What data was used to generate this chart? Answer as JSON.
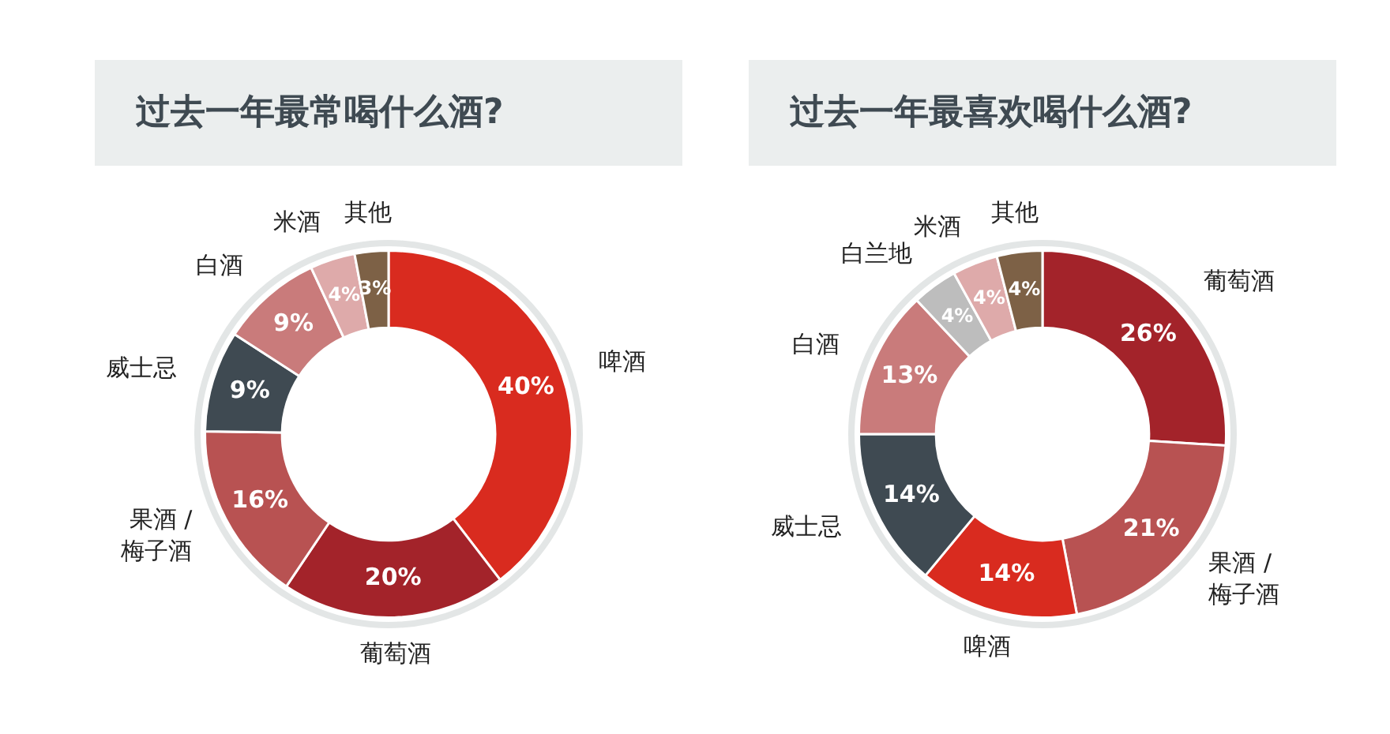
{
  "chart_data": [
    {
      "type": "donut",
      "title": "过去一年最常喝什么酒?",
      "categories": [
        "啤酒",
        "葡萄酒",
        "果酒 / 梅子酒",
        "威士忌",
        "白酒",
        "米酒",
        "其他"
      ],
      "values": [
        40,
        20,
        16,
        9,
        9,
        4,
        3
      ],
      "colors": [
        "#d92b1f",
        "#a3232a",
        "#b85252",
        "#3f4a52",
        "#c97b7b",
        "#deaaaa",
        "#7d6146"
      ],
      "value_labels": [
        "40%",
        "20%",
        "16%",
        "9%",
        "9%",
        "4%",
        "3%"
      ]
    },
    {
      "type": "donut",
      "title": "过去一年最喜欢喝什么酒?",
      "categories": [
        "葡萄酒",
        "果酒 / 梅子酒",
        "啤酒",
        "威士忌",
        "白酒",
        "白兰地",
        "米酒",
        "其他"
      ],
      "values": [
        26,
        21,
        14,
        14,
        13,
        4,
        4,
        4
      ],
      "colors": [
        "#a3232a",
        "#b85252",
        "#d92b1f",
        "#3f4a52",
        "#c97b7b",
        "#bdbdbd",
        "#deaaaa",
        "#7d6146"
      ],
      "value_labels": [
        "26%",
        "21%",
        "14%",
        "14%",
        "13%",
        "4%",
        "4%",
        "4%"
      ]
    }
  ]
}
